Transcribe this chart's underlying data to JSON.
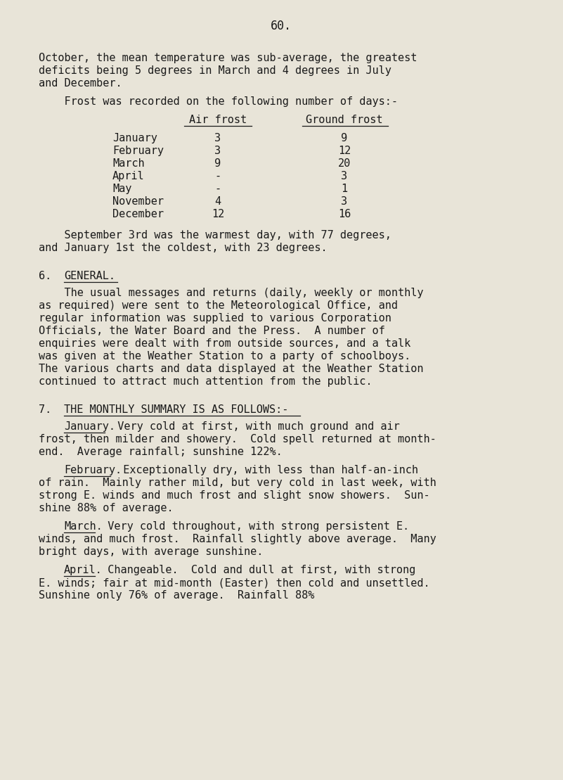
{
  "background_color": "#e8e4d8",
  "page_number": "60.",
  "text_color": "#1a1a1a",
  "font_family": "monospace",
  "font_size": 11.0,
  "lines_top": [
    "October, the mean temperature was sub-average, the greatest",
    "deficits being 5 degrees in March and 4 degrees in July",
    "and December."
  ],
  "frost_intro": "    Frost was recorded on the following number of days:-",
  "col_air_label": "Air frost",
  "col_ground_label": "Ground frost",
  "frost_rows": [
    {
      "month": "January",
      "air": "3",
      "ground": "9"
    },
    {
      "month": "February",
      "air": "3",
      "ground": "12"
    },
    {
      "month": "March",
      "air": "9",
      "ground": "20"
    },
    {
      "month": "April",
      "air": "-",
      "ground": "3"
    },
    {
      "month": "May",
      "air": "-",
      "ground": "1"
    },
    {
      "month": "November",
      "air": "4",
      "ground": "3"
    },
    {
      "month": "December",
      "air": "12",
      "ground": "16"
    }
  ],
  "warmest_lines": [
    "    September 3rd was the warmest day, with 77 degrees,",
    "and January 1st the coldest, with 23 degrees."
  ],
  "sec6_num": "6.",
  "sec6_head": "GENERAL.",
  "sec6_body": [
    "    The usual messages and returns (daily, weekly or monthly",
    "as required) were sent to the Meteorological Office, and",
    "regular information was supplied to various Corporation",
    "Officials, the Water Board and the Press.  A number of",
    "enquiries were dealt with from outside sources, and a talk",
    "was given at the Weather Station to a party of schoolboys.",
    "The various charts and data displayed at the Weather Station",
    "continued to attract much attention from the public."
  ],
  "sec7_num": "7.",
  "sec7_head": "THE MONTHLY SUMMARY IS AS FOLLOWS:-",
  "paragraphs": [
    {
      "label": "January.",
      "lines": [
        "  Very cold at first, with much ground and air",
        "frost, then milder and showery.  Cold spell returned at month-",
        "end.  Average rainfall; sunshine 122%."
      ]
    },
    {
      "label": "February.",
      "lines": [
        "  Exceptionally dry, with less than half-an-inch",
        "of rain.  Mainly rather mild, but very cold in last week, with",
        "strong E. winds and much frost and slight snow showers.  Sun-",
        "shine 88% of average."
      ]
    },
    {
      "label": "March.",
      "lines": [
        "  Very cold throughout, with strong persistent E.",
        "winds, and much frost.  Rainfall slightly above average.  Many",
        "bright days, with average sunshine."
      ]
    },
    {
      "label": "April.",
      "lines": [
        "  Changeable.  Cold and dull at first, with strong",
        "E. winds; fair at mid-month (Easter) then cold and unsettled.",
        "Sunshine only 76% of average.  Rainfall 88%"
      ]
    }
  ]
}
